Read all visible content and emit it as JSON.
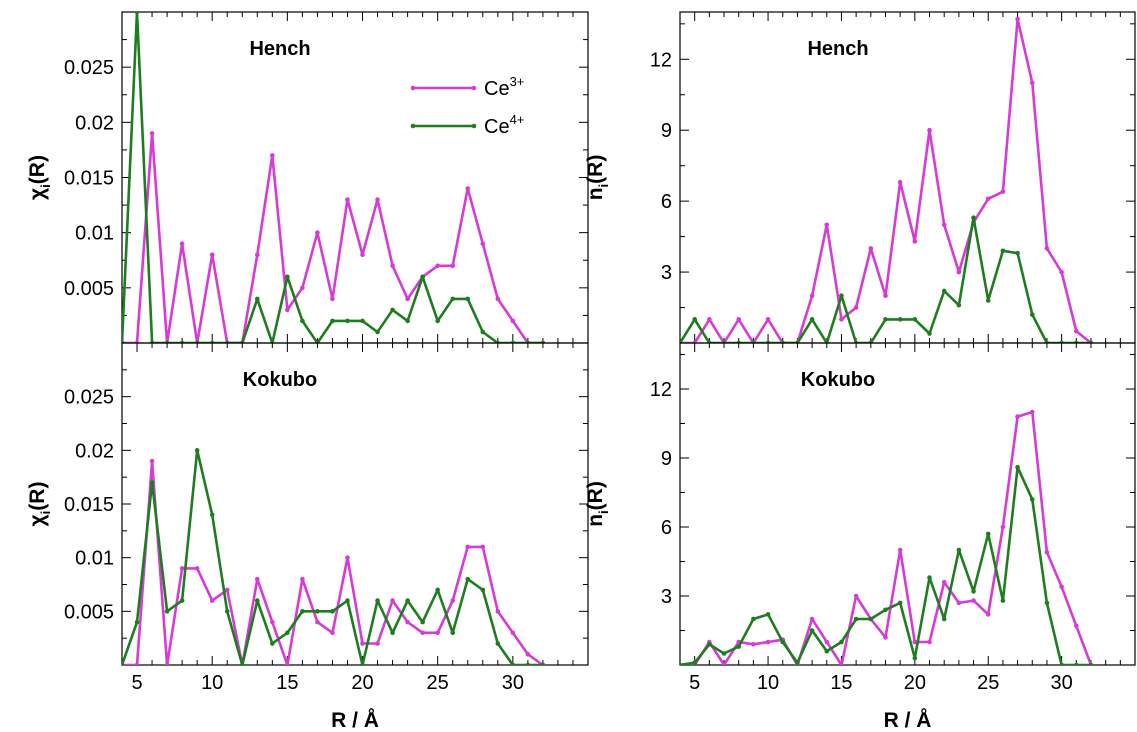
{
  "colors": {
    "ce3": "#d63bd6",
    "ce4": "#1e7d1e"
  },
  "legend": [
    {
      "base": "Ce",
      "sup": "3+"
    },
    {
      "base": "Ce",
      "sup": "4+"
    }
  ],
  "labels": {
    "chi_main": "χ",
    "chi_sub": "i",
    "chi_tail": "(R)",
    "n_main": "n",
    "n_sub": "i",
    "n_tail": "(R)",
    "xlabel": "R / Å"
  },
  "chart_data": [
    {
      "type": "line",
      "panel": "top-left",
      "title": "Hench",
      "xlim": [
        4,
        35
      ],
      "ylim": [
        0,
        0.03
      ],
      "xticks": [
        "5",
        "10",
        "15",
        "20",
        "25",
        "30"
      ],
      "yticks": [
        "0.005",
        "0.01",
        "0.015",
        "0.02",
        "0.025"
      ],
      "x": [
        4,
        5,
        6,
        7,
        8,
        9,
        10,
        11,
        12,
        13,
        14,
        15,
        16,
        17,
        18,
        19,
        20,
        21,
        22,
        23,
        24,
        25,
        26,
        27,
        28,
        29,
        30,
        31,
        32
      ],
      "series": [
        {
          "name": "Ce3+",
          "values": [
            0,
            0,
            0.019,
            0,
            0.009,
            0,
            0.008,
            0,
            0,
            0.008,
            0.017,
            0.003,
            0.005,
            0.01,
            0.004,
            0.013,
            0.008,
            0.013,
            0.007,
            0.004,
            0.006,
            0.007,
            0.007,
            0.014,
            0.009,
            0.004,
            0.002,
            0,
            0
          ]
        },
        {
          "name": "Ce4+",
          "values": [
            0,
            0.03,
            0,
            0,
            0,
            0,
            0,
            0,
            0,
            0.004,
            0,
            0.006,
            0.002,
            0,
            0.002,
            0.002,
            0.002,
            0.001,
            0.003,
            0.002,
            0.006,
            0.002,
            0.004,
            0.004,
            0.001,
            0,
            0,
            0,
            0
          ]
        }
      ]
    },
    {
      "type": "line",
      "panel": "top-right",
      "title": "Hench",
      "xlim": [
        4,
        35
      ],
      "ylim": [
        0,
        14
      ],
      "xticks": [
        "5",
        "10",
        "15",
        "20",
        "25",
        "30"
      ],
      "yticks": [
        "3",
        "6",
        "9",
        "12"
      ],
      "x": [
        4,
        5,
        6,
        7,
        8,
        9,
        10,
        11,
        12,
        13,
        14,
        15,
        16,
        17,
        18,
        19,
        20,
        21,
        22,
        23,
        24,
        25,
        26,
        27,
        28,
        29,
        30,
        31,
        32
      ],
      "series": [
        {
          "name": "Ce3+",
          "values": [
            0,
            0,
            1,
            0,
            1,
            0,
            1,
            0,
            0,
            2,
            5,
            1,
            1.5,
            4,
            2,
            6.8,
            4.3,
            9,
            5,
            3,
            5.1,
            6.1,
            6.4,
            13.7,
            11,
            4,
            3,
            0.5,
            0
          ]
        },
        {
          "name": "Ce4+",
          "values": [
            0,
            1,
            0,
            0,
            0,
            0,
            0,
            0,
            0,
            1,
            0,
            2,
            0,
            0,
            1,
            1,
            1,
            0.4,
            2.2,
            1.6,
            5.3,
            1.8,
            3.9,
            3.8,
            1.2,
            0,
            0,
            0,
            0
          ]
        }
      ]
    },
    {
      "type": "line",
      "panel": "bottom-left",
      "title": "Kokubo",
      "xlim": [
        4,
        35
      ],
      "ylim": [
        0,
        0.03
      ],
      "xticks": [
        "5",
        "10",
        "15",
        "20",
        "25",
        "30"
      ],
      "yticks": [
        "0.005",
        "0.01",
        "0.015",
        "0.02",
        "0.025"
      ],
      "x": [
        4,
        5,
        6,
        7,
        8,
        9,
        10,
        11,
        12,
        13,
        14,
        15,
        16,
        17,
        18,
        19,
        20,
        21,
        22,
        23,
        24,
        25,
        26,
        27,
        28,
        29,
        30,
        31,
        32
      ],
      "series": [
        {
          "name": "Ce3+",
          "values": [
            0,
            0,
            0.019,
            0,
            0.009,
            0.009,
            0.006,
            0.007,
            0,
            0.008,
            0.004,
            0,
            0.008,
            0.004,
            0.003,
            0.01,
            0.002,
            0.002,
            0.006,
            0.004,
            0.003,
            0.003,
            0.006,
            0.011,
            0.011,
            0.005,
            0.003,
            0.001,
            0
          ]
        },
        {
          "name": "Ce4+",
          "values": [
            0,
            0.004,
            0.017,
            0.005,
            0.006,
            0.02,
            0.014,
            0.005,
            0,
            0.006,
            0.002,
            0.003,
            0.005,
            0.005,
            0.005,
            0.006,
            0,
            0.006,
            0.003,
            0.006,
            0.004,
            0.007,
            0.003,
            0.008,
            0.007,
            0.002,
            0,
            0,
            0
          ]
        }
      ]
    },
    {
      "type": "line",
      "panel": "bottom-right",
      "title": "Kokubo",
      "xlim": [
        4,
        35
      ],
      "ylim": [
        0,
        14
      ],
      "xticks": [
        "5",
        "10",
        "15",
        "20",
        "25",
        "30"
      ],
      "yticks": [
        "3",
        "6",
        "9",
        "12"
      ],
      "x": [
        4,
        5,
        6,
        7,
        8,
        9,
        10,
        11,
        12,
        13,
        14,
        15,
        16,
        17,
        18,
        19,
        20,
        21,
        22,
        23,
        24,
        25,
        26,
        27,
        28,
        29,
        30,
        31,
        32
      ],
      "series": [
        {
          "name": "Ce3+",
          "values": [
            0,
            0,
            1,
            0,
            1,
            0.9,
            1,
            1.1,
            0,
            2,
            1,
            0,
            3,
            2,
            1.2,
            5,
            1,
            1,
            3.6,
            2.7,
            2.8,
            2.2,
            6,
            10.8,
            11,
            4.9,
            3.4,
            1.7,
            0
          ]
        },
        {
          "name": "Ce4+",
          "values": [
            0,
            0.1,
            0.9,
            0.5,
            0.8,
            2,
            2.2,
            1,
            0.1,
            1.5,
            0.6,
            1,
            2,
            2,
            2.4,
            2.7,
            0.3,
            3.8,
            2,
            5,
            3.2,
            5.7,
            2.8,
            8.6,
            7.2,
            2.7,
            0,
            0,
            0
          ]
        }
      ]
    }
  ]
}
